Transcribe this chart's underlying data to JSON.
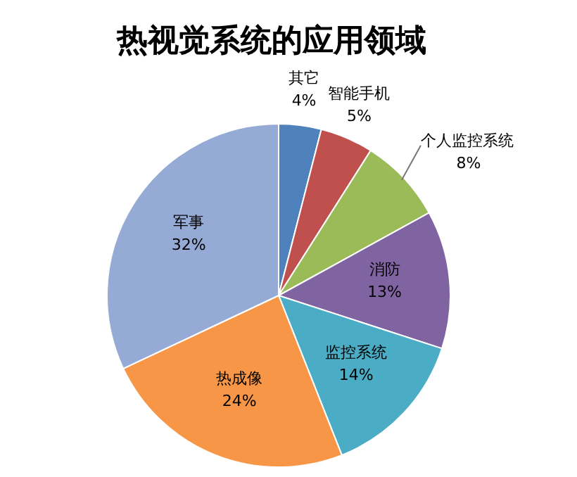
{
  "chart_data": {
    "type": "pie",
    "title": "热视觉系统的应用领域",
    "categories": [
      "其它",
      "智能手机",
      "个人监控系统",
      "消防",
      "监控系统",
      "热成像",
      "军事"
    ],
    "values": [
      4,
      5,
      8,
      13,
      14,
      24,
      32
    ],
    "value_labels": [
      "4%",
      "5%",
      "8%",
      "13%",
      "14%",
      "24%",
      "32%"
    ],
    "colors": [
      "#4f81bd",
      "#c0504d",
      "#9bbb59",
      "#8064a2",
      "#4bacc6",
      "#f79646",
      "#95abd6"
    ],
    "legend": false
  }
}
